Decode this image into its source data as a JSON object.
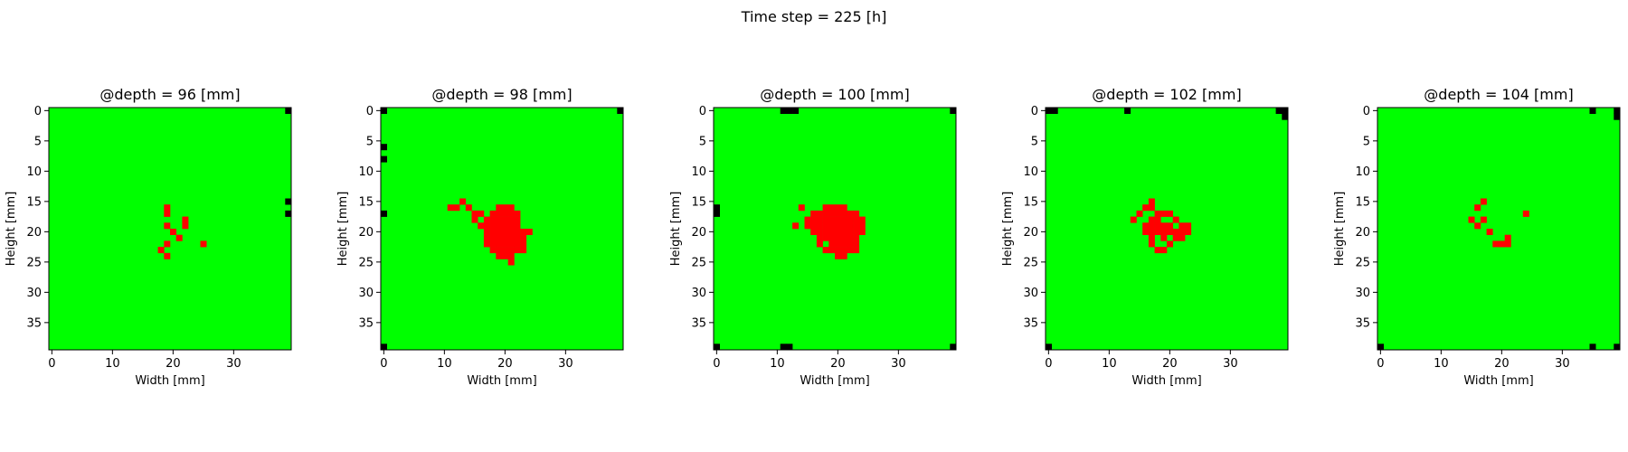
{
  "figure": {
    "suptitle": "Time step = 225 [h]"
  },
  "colors": {
    "healthy": "#00ff00",
    "tumor": "#ff0000",
    "boundary": "#000000"
  },
  "chart_data": [
    {
      "type": "heatmap",
      "title": "@depth = 96 [mm]",
      "xlabel": "Width [mm]",
      "ylabel": "Height [mm]",
      "grid_size": [
        40,
        40
      ],
      "xticks": [
        0,
        10,
        20,
        30
      ],
      "yticks": [
        0,
        5,
        10,
        15,
        20,
        25,
        30,
        35
      ],
      "legend": null,
      "red_cells": [
        [
          19,
          16
        ],
        [
          19,
          17
        ],
        [
          22,
          18
        ],
        [
          19,
          19
        ],
        [
          22,
          19
        ],
        [
          20,
          20
        ],
        [
          21,
          21
        ],
        [
          25,
          22
        ],
        [
          19,
          22
        ],
        [
          18,
          23
        ],
        [
          19,
          24
        ]
      ],
      "black_cells": [
        [
          39,
          0
        ],
        [
          39,
          15
        ],
        [
          39,
          17
        ]
      ]
    },
    {
      "type": "heatmap",
      "title": "@depth = 98 [mm]",
      "xlabel": "Width [mm]",
      "ylabel": "Height [mm]",
      "grid_size": [
        40,
        40
      ],
      "xticks": [
        0,
        10,
        20,
        30
      ],
      "yticks": [
        0,
        5,
        10,
        15,
        20,
        25,
        30,
        35
      ],
      "legend": null,
      "red_cells": [
        [
          13,
          15
        ],
        [
          11,
          16
        ],
        [
          12,
          16
        ],
        [
          14,
          16
        ],
        [
          19,
          16
        ],
        [
          20,
          16
        ],
        [
          21,
          16
        ],
        [
          15,
          17
        ],
        [
          16,
          17
        ],
        [
          18,
          17
        ],
        [
          19,
          17
        ],
        [
          20,
          17
        ],
        [
          21,
          17
        ],
        [
          22,
          17
        ],
        [
          15,
          18
        ],
        [
          17,
          18
        ],
        [
          18,
          18
        ],
        [
          19,
          18
        ],
        [
          20,
          18
        ],
        [
          21,
          18
        ],
        [
          22,
          18
        ],
        [
          16,
          19
        ],
        [
          17,
          19
        ],
        [
          18,
          19
        ],
        [
          19,
          19
        ],
        [
          20,
          19
        ],
        [
          21,
          19
        ],
        [
          22,
          19
        ],
        [
          17,
          20
        ],
        [
          18,
          20
        ],
        [
          19,
          20
        ],
        [
          20,
          20
        ],
        [
          21,
          20
        ],
        [
          22,
          20
        ],
        [
          23,
          20
        ],
        [
          24,
          20
        ],
        [
          17,
          21
        ],
        [
          18,
          21
        ],
        [
          19,
          21
        ],
        [
          20,
          21
        ],
        [
          21,
          21
        ],
        [
          22,
          21
        ],
        [
          23,
          21
        ],
        [
          17,
          22
        ],
        [
          18,
          22
        ],
        [
          19,
          22
        ],
        [
          20,
          22
        ],
        [
          21,
          22
        ],
        [
          22,
          22
        ],
        [
          23,
          22
        ],
        [
          18,
          23
        ],
        [
          19,
          23
        ],
        [
          20,
          23
        ],
        [
          21,
          23
        ],
        [
          22,
          23
        ],
        [
          23,
          23
        ],
        [
          19,
          24
        ],
        [
          20,
          24
        ],
        [
          21,
          24
        ],
        [
          21,
          25
        ]
      ],
      "black_cells": [
        [
          0,
          0
        ],
        [
          39,
          0
        ],
        [
          0,
          6
        ],
        [
          0,
          8
        ],
        [
          0,
          17
        ],
        [
          0,
          39
        ]
      ]
    },
    {
      "type": "heatmap",
      "title": "@depth = 100 [mm]",
      "xlabel": "Width [mm]",
      "ylabel": "Height [mm]",
      "grid_size": [
        40,
        40
      ],
      "xticks": [
        0,
        10,
        20,
        30
      ],
      "yticks": [
        0,
        5,
        10,
        15,
        20,
        25,
        30,
        35
      ],
      "legend": null,
      "red_cells": [
        [
          18,
          16
        ],
        [
          19,
          16
        ],
        [
          20,
          16
        ],
        [
          21,
          16
        ],
        [
          14,
          16
        ],
        [
          16,
          17
        ],
        [
          17,
          17
        ],
        [
          18,
          17
        ],
        [
          19,
          17
        ],
        [
          20,
          17
        ],
        [
          21,
          17
        ],
        [
          22,
          17
        ],
        [
          23,
          17
        ],
        [
          15,
          18
        ],
        [
          16,
          18
        ],
        [
          17,
          18
        ],
        [
          18,
          18
        ],
        [
          19,
          18
        ],
        [
          20,
          18
        ],
        [
          21,
          18
        ],
        [
          22,
          18
        ],
        [
          23,
          18
        ],
        [
          24,
          18
        ],
        [
          15,
          19
        ],
        [
          16,
          19
        ],
        [
          17,
          19
        ],
        [
          18,
          19
        ],
        [
          19,
          19
        ],
        [
          20,
          19
        ],
        [
          21,
          19
        ],
        [
          22,
          19
        ],
        [
          23,
          19
        ],
        [
          24,
          19
        ],
        [
          13,
          19
        ],
        [
          16,
          20
        ],
        [
          17,
          20
        ],
        [
          18,
          20
        ],
        [
          19,
          20
        ],
        [
          20,
          20
        ],
        [
          21,
          20
        ],
        [
          22,
          20
        ],
        [
          23,
          20
        ],
        [
          24,
          20
        ],
        [
          17,
          21
        ],
        [
          18,
          21
        ],
        [
          19,
          21
        ],
        [
          20,
          21
        ],
        [
          21,
          21
        ],
        [
          22,
          21
        ],
        [
          23,
          21
        ],
        [
          17,
          22
        ],
        [
          19,
          22
        ],
        [
          20,
          22
        ],
        [
          21,
          22
        ],
        [
          22,
          22
        ],
        [
          23,
          22
        ],
        [
          18,
          23
        ],
        [
          19,
          23
        ],
        [
          20,
          23
        ],
        [
          21,
          23
        ],
        [
          22,
          23
        ],
        [
          23,
          23
        ],
        [
          20,
          24
        ],
        [
          21,
          24
        ]
      ],
      "black_cells": [
        [
          11,
          0
        ],
        [
          12,
          0
        ],
        [
          13,
          0
        ],
        [
          39,
          0
        ],
        [
          0,
          16
        ],
        [
          0,
          17
        ],
        [
          0,
          39
        ],
        [
          11,
          39
        ],
        [
          12,
          39
        ],
        [
          39,
          39
        ]
      ]
    },
    {
      "type": "heatmap",
      "title": "@depth = 102 [mm]",
      "xlabel": "Width [mm]",
      "ylabel": "Height [mm]",
      "grid_size": [
        40,
        40
      ],
      "xticks": [
        0,
        10,
        20,
        30
      ],
      "yticks": [
        0,
        5,
        10,
        15,
        20,
        25,
        30,
        35
      ],
      "legend": null,
      "red_cells": [
        [
          17,
          15
        ],
        [
          16,
          16
        ],
        [
          17,
          16
        ],
        [
          15,
          17
        ],
        [
          18,
          17
        ],
        [
          19,
          17
        ],
        [
          20,
          17
        ],
        [
          14,
          18
        ],
        [
          17,
          18
        ],
        [
          18,
          18
        ],
        [
          21,
          18
        ],
        [
          16,
          19
        ],
        [
          17,
          19
        ],
        [
          18,
          19
        ],
        [
          19,
          19
        ],
        [
          20,
          19
        ],
        [
          22,
          19
        ],
        [
          23,
          19
        ],
        [
          16,
          20
        ],
        [
          17,
          20
        ],
        [
          18,
          20
        ],
        [
          19,
          20
        ],
        [
          20,
          20
        ],
        [
          21,
          20
        ],
        [
          22,
          20
        ],
        [
          23,
          20
        ],
        [
          17,
          21
        ],
        [
          19,
          21
        ],
        [
          21,
          21
        ],
        [
          22,
          21
        ],
        [
          17,
          22
        ],
        [
          20,
          22
        ],
        [
          18,
          23
        ],
        [
          19,
          23
        ]
      ],
      "black_cells": [
        [
          0,
          0
        ],
        [
          1,
          0
        ],
        [
          13,
          0
        ],
        [
          38,
          0
        ],
        [
          39,
          0
        ],
        [
          39,
          1
        ],
        [
          0,
          39
        ]
      ]
    },
    {
      "type": "heatmap",
      "title": "@depth = 104 [mm]",
      "xlabel": "Width [mm]",
      "ylabel": "Height [mm]",
      "grid_size": [
        40,
        40
      ],
      "xticks": [
        0,
        10,
        20,
        30
      ],
      "yticks": [
        0,
        5,
        10,
        15,
        20,
        25,
        30,
        35
      ],
      "legend": null,
      "red_cells": [
        [
          17,
          15
        ],
        [
          16,
          16
        ],
        [
          24,
          17
        ],
        [
          15,
          18
        ],
        [
          17,
          18
        ],
        [
          16,
          19
        ],
        [
          18,
          20
        ],
        [
          21,
          21
        ],
        [
          19,
          22
        ],
        [
          20,
          22
        ],
        [
          21,
          22
        ]
      ],
      "black_cells": [
        [
          35,
          0
        ],
        [
          39,
          0
        ],
        [
          39,
          1
        ],
        [
          0,
          39
        ],
        [
          35,
          39
        ],
        [
          39,
          39
        ]
      ]
    }
  ]
}
